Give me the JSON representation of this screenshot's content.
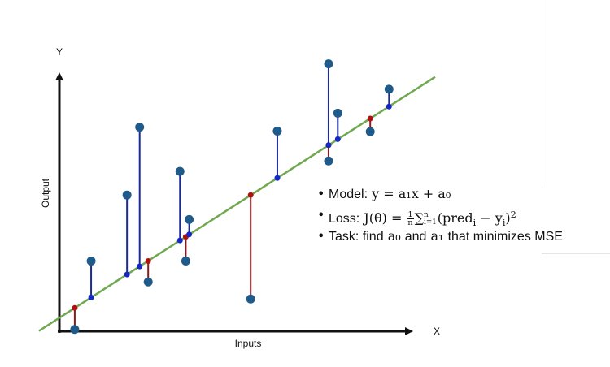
{
  "chart_data": {
    "type": "scatter",
    "title": "",
    "xlabel": "Inputs",
    "ylabel": "Output",
    "x_axis_letter": "X",
    "y_axis_letter": "Y",
    "xlim": [
      0,
      10
    ],
    "ylim": [
      0,
      10
    ],
    "grid": false,
    "regression_line": {
      "slope": 0.733,
      "intercept": 0.45,
      "x_range": [
        -0.6,
        11.0
      ],
      "color": "#6fa84f"
    },
    "points": [
      {
        "x": 0.45,
        "y_actual": 0.06,
        "y_pred": 0.78
      },
      {
        "x": 0.93,
        "y_actual": 2.35,
        "y_pred": 1.13
      },
      {
        "x": 1.98,
        "y_actual": 4.56,
        "y_pred": 1.9
      },
      {
        "x": 2.35,
        "y_actual": 6.83,
        "y_pred": 2.17
      },
      {
        "x": 2.6,
        "y_actual": 1.65,
        "y_pred": 2.35
      },
      {
        "x": 3.53,
        "y_actual": 5.35,
        "y_pred": 3.04
      },
      {
        "x": 3.7,
        "y_actual": 2.35,
        "y_pred": 3.16
      },
      {
        "x": 3.8,
        "y_actual": 3.74,
        "y_pred": 3.24
      },
      {
        "x": 5.6,
        "y_actual": 1.08,
        "y_pred": 4.56
      },
      {
        "x": 6.38,
        "y_actual": 6.7,
        "y_pred": 5.13
      },
      {
        "x": 7.88,
        "y_actual": 5.7,
        "y_pred": 6.23
      },
      {
        "x": 7.88,
        "y_actual": 8.95,
        "y_pred": 6.23
      },
      {
        "x": 8.15,
        "y_actual": 7.3,
        "y_pred": 6.43
      },
      {
        "x": 9.1,
        "y_actual": 6.68,
        "y_pred": 7.12
      },
      {
        "x": 9.65,
        "y_actual": 8.1,
        "y_pred": 7.52
      }
    ],
    "colors": {
      "axis": "#111111",
      "actual_point": "#1f5b8a",
      "pred_above": "#1428c8",
      "pred_below": "#b01010",
      "residual_above": "#1a2a9a",
      "residual_below": "#8b1a1a"
    }
  },
  "annotations": {
    "model_label": "Model:",
    "model_eq": "y = a₁x + a₀",
    "loss_label": "Loss:",
    "loss_eq_left": "J(θ) =",
    "loss_frac_num": "1",
    "loss_frac_den": "n",
    "loss_sum_upper": "n",
    "loss_sum_lower": "i=1",
    "loss_body": "(pred",
    "loss_sub_i": "i",
    "loss_minus": " − y",
    "loss_sub_i2": "i",
    "loss_close": ")",
    "loss_power": "2",
    "task_text_1": "Task: find",
    "task_a0": "a₀",
    "task_text_2": "and",
    "task_a1": "a₁",
    "task_text_3": "that minimizes MSE"
  }
}
